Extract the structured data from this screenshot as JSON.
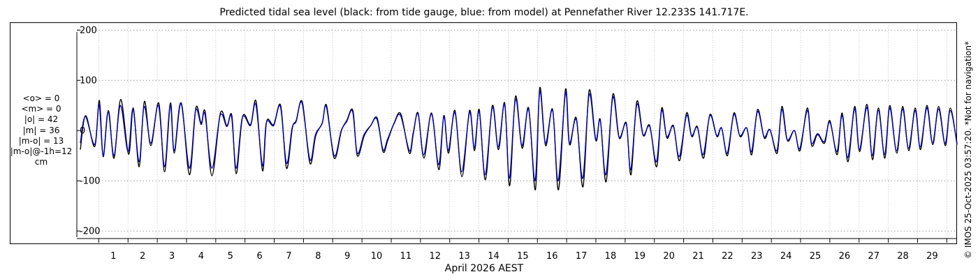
{
  "header": {
    "title": "Predicted tidal sea level (black: from tide gauge, blue: from model) at Pennefather River 12.233S 141.717E."
  },
  "stats": {
    "lines": [
      "<o> = 0",
      "<m> = 0",
      "|o| = 42",
      "|m| = 36",
      "|m-o| = 13",
      "|m-o|@-1h=12",
      "cm"
    ]
  },
  "credit": {
    "text": "© IMOS 25-Oct-2025 03:57:20. *Not for navigation*"
  },
  "colors": {
    "gauge": "#000000",
    "model": "#0000cc",
    "grid": "#999999"
  },
  "chart_data": {
    "type": "line",
    "title": "Predicted tidal sea level (black: from tide gauge, blue: from model) at Pennefather River 12.233S 141.717E.",
    "xlabel": "April 2026 AEST",
    "ylabel": "",
    "xlim": [
      0.25,
      30.35
    ],
    "ylim": [
      -215,
      210
    ],
    "yticks": [
      -200,
      -100,
      0,
      100,
      200
    ],
    "xticks": [
      1,
      2,
      3,
      4,
      5,
      6,
      7,
      8,
      9,
      10,
      11,
      12,
      13,
      14,
      15,
      16,
      17,
      18,
      19,
      20,
      21,
      22,
      23,
      24,
      25,
      26,
      27,
      28,
      29
    ],
    "grid": "dotted",
    "x_unit": "day of April 2026",
    "y_unit": "cm",
    "series": [
      {
        "color": "#000000",
        "x": [
          0.37,
          0.55,
          0.86,
          1.02,
          1.15,
          1.33,
          1.52,
          1.75,
          2.02,
          2.18,
          2.38,
          2.56,
          2.78,
          3.05,
          3.25,
          3.45,
          3.58,
          3.82,
          4.1,
          4.32,
          4.5,
          4.64,
          4.87,
          5.16,
          5.38,
          5.55,
          5.7,
          5.92,
          6.19,
          6.38,
          6.6,
          6.74,
          6.98,
          7.22,
          7.42,
          7.62,
          7.75,
          7.96,
          8.22,
          8.42,
          8.64,
          8.79,
          9.05,
          9.3,
          9.48,
          9.69,
          9.84,
          10.08,
          10.3,
          10.52,
          10.72,
          10.88,
          11.1,
          11.33,
          11.62,
          11.76,
          11.92,
          12.12,
          12.38,
          12.63,
          12.8,
          12.96,
          13.18,
          13.42,
          13.68,
          13.85,
          14.01,
          14.22,
          14.46,
          14.67,
          14.88,
          15.05,
          15.25,
          15.48,
          15.7,
          15.93,
          16.08,
          16.28,
          16.52,
          16.72,
          16.96,
          17.1,
          17.33,
          17.56,
          17.77,
          18.0,
          18.15,
          18.35,
          18.58,
          18.8,
          19.04,
          19.2,
          19.4,
          19.62,
          19.84,
          20.08,
          20.25,
          20.43,
          20.65,
          20.86,
          21.1,
          21.28,
          21.47,
          21.68,
          21.9,
          22.14,
          22.3,
          22.5,
          22.72,
          22.93,
          23.16,
          23.33,
          23.53,
          23.76,
          23.95,
          24.2,
          24.36,
          24.55,
          24.79,
          24.98,
          25.23,
          25.38,
          25.58,
          25.82,
          26.0,
          26.25,
          26.42,
          26.62,
          26.85,
          27.02,
          27.27,
          27.46,
          27.66,
          27.88,
          28.05,
          28.29,
          28.49,
          28.7,
          28.92,
          29.1,
          29.32,
          29.52,
          29.72,
          29.95,
          30.12,
          30.35
        ],
        "y": [
          -38,
          30,
          -32,
          60,
          -52,
          40,
          -55,
          62,
          -47,
          45,
          -72,
          58,
          -30,
          55,
          -82,
          55,
          -45,
          55,
          -88,
          45,
          15,
          37,
          -90,
          35,
          10,
          30,
          -86,
          28,
          12,
          58,
          -80,
          18,
          12,
          50,
          -75,
          5,
          20,
          57,
          -65,
          -10,
          15,
          50,
          -55,
          0,
          20,
          40,
          -50,
          -10,
          10,
          25,
          -42,
          -20,
          15,
          33,
          -45,
          -5,
          35,
          -55,
          35,
          -78,
          30,
          -45,
          40,
          -92,
          40,
          -40,
          42,
          -98,
          50,
          -38,
          55,
          -110,
          68,
          -35,
          45,
          -118,
          85,
          -30,
          42,
          -118,
          82,
          -28,
          25,
          -112,
          80,
          -20,
          22,
          -102,
          72,
          -15,
          15,
          -88,
          58,
          -10,
          10,
          -72,
          45,
          -15,
          10,
          -60,
          35,
          -12,
          8,
          -55,
          32,
          -12,
          5,
          -50,
          35,
          -12,
          5,
          -48,
          42,
          -15,
          2,
          -45,
          48,
          -20,
          0,
          -40,
          45,
          -30,
          -8,
          -25,
          20,
          -48,
          35,
          -62,
          48,
          -42,
          52,
          -58,
          45,
          -55,
          50,
          -45,
          48,
          -40,
          45,
          -38,
          50,
          -28,
          48,
          -30,
          45,
          -28
        ]
      },
      {
        "color": "#0000cc",
        "x": [
          0.37,
          0.54,
          0.86,
          1.01,
          1.15,
          1.32,
          1.52,
          1.74,
          2.0,
          2.17,
          2.38,
          2.55,
          2.78,
          3.04,
          3.25,
          3.44,
          3.58,
          3.81,
          4.1,
          4.31,
          4.5,
          4.63,
          4.87,
          5.15,
          5.38,
          5.54,
          5.7,
          5.91,
          6.19,
          6.37,
          6.6,
          6.73,
          6.98,
          7.21,
          7.42,
          7.61,
          7.75,
          7.95,
          8.22,
          8.41,
          8.64,
          8.78,
          9.05,
          9.29,
          9.48,
          9.68,
          9.84,
          10.07,
          10.3,
          10.51,
          10.72,
          10.87,
          11.1,
          11.32,
          11.62,
          11.75,
          11.92,
          12.11,
          12.38,
          12.62,
          12.8,
          12.95,
          13.18,
          13.41,
          13.68,
          13.84,
          14.01,
          14.21,
          14.46,
          14.66,
          14.88,
          15.04,
          15.25,
          15.47,
          15.7,
          15.92,
          16.08,
          16.27,
          16.52,
          16.71,
          16.96,
          17.09,
          17.33,
          17.55,
          17.77,
          17.99,
          18.15,
          18.34,
          18.58,
          18.79,
          19.04,
          19.19,
          19.4,
          19.61,
          19.84,
          20.07,
          20.25,
          20.42,
          20.65,
          20.85,
          21.1,
          21.27,
          21.47,
          21.67,
          21.9,
          22.13,
          22.3,
          22.49,
          22.72,
          22.92,
          23.16,
          23.32,
          23.53,
          23.75,
          23.95,
          24.19,
          24.36,
          24.54,
          24.79,
          24.97,
          25.23,
          25.37,
          25.58,
          25.81,
          26.0,
          26.24,
          26.42,
          26.61,
          26.85,
          27.01,
          27.27,
          27.45,
          27.66,
          27.87,
          28.05,
          28.28,
          28.49,
          28.69,
          28.92,
          29.09,
          29.32,
          29.51,
          29.72,
          29.94,
          30.12,
          30.35
        ],
        "y": [
          -25,
          28,
          -28,
          52,
          -50,
          38,
          -50,
          50,
          -42,
          43,
          -62,
          48,
          -25,
          50,
          -72,
          52,
          -40,
          55,
          -75,
          40,
          12,
          33,
          -75,
          30,
          8,
          28,
          -75,
          26,
          10,
          52,
          -70,
          16,
          10,
          48,
          -65,
          5,
          18,
          55,
          -58,
          -8,
          14,
          48,
          -50,
          0,
          18,
          38,
          -45,
          -8,
          10,
          23,
          -38,
          -18,
          14,
          30,
          -40,
          -5,
          33,
          -48,
          33,
          -68,
          28,
          -40,
          36,
          -82,
          36,
          -35,
          38,
          -88,
          46,
          -33,
          52,
          -95,
          62,
          -30,
          42,
          -100,
          78,
          -25,
          40,
          -100,
          75,
          -25,
          22,
          -95,
          72,
          -18,
          20,
          -88,
          66,
          -13,
          13,
          -78,
          52,
          -8,
          8,
          -62,
          40,
          -12,
          8,
          -52,
          30,
          -10,
          6,
          -48,
          30,
          -10,
          5,
          -45,
          32,
          -10,
          5,
          -42,
          38,
          -12,
          2,
          -40,
          42,
          -18,
          0,
          -36,
          40,
          -25,
          -6,
          -22,
          17,
          -42,
          30,
          -54,
          43,
          -38,
          46,
          -50,
          40,
          -48,
          45,
          -40,
          43,
          -35,
          40,
          -33,
          45,
          -25,
          43,
          -26,
          40,
          -25
        ]
      }
    ]
  }
}
